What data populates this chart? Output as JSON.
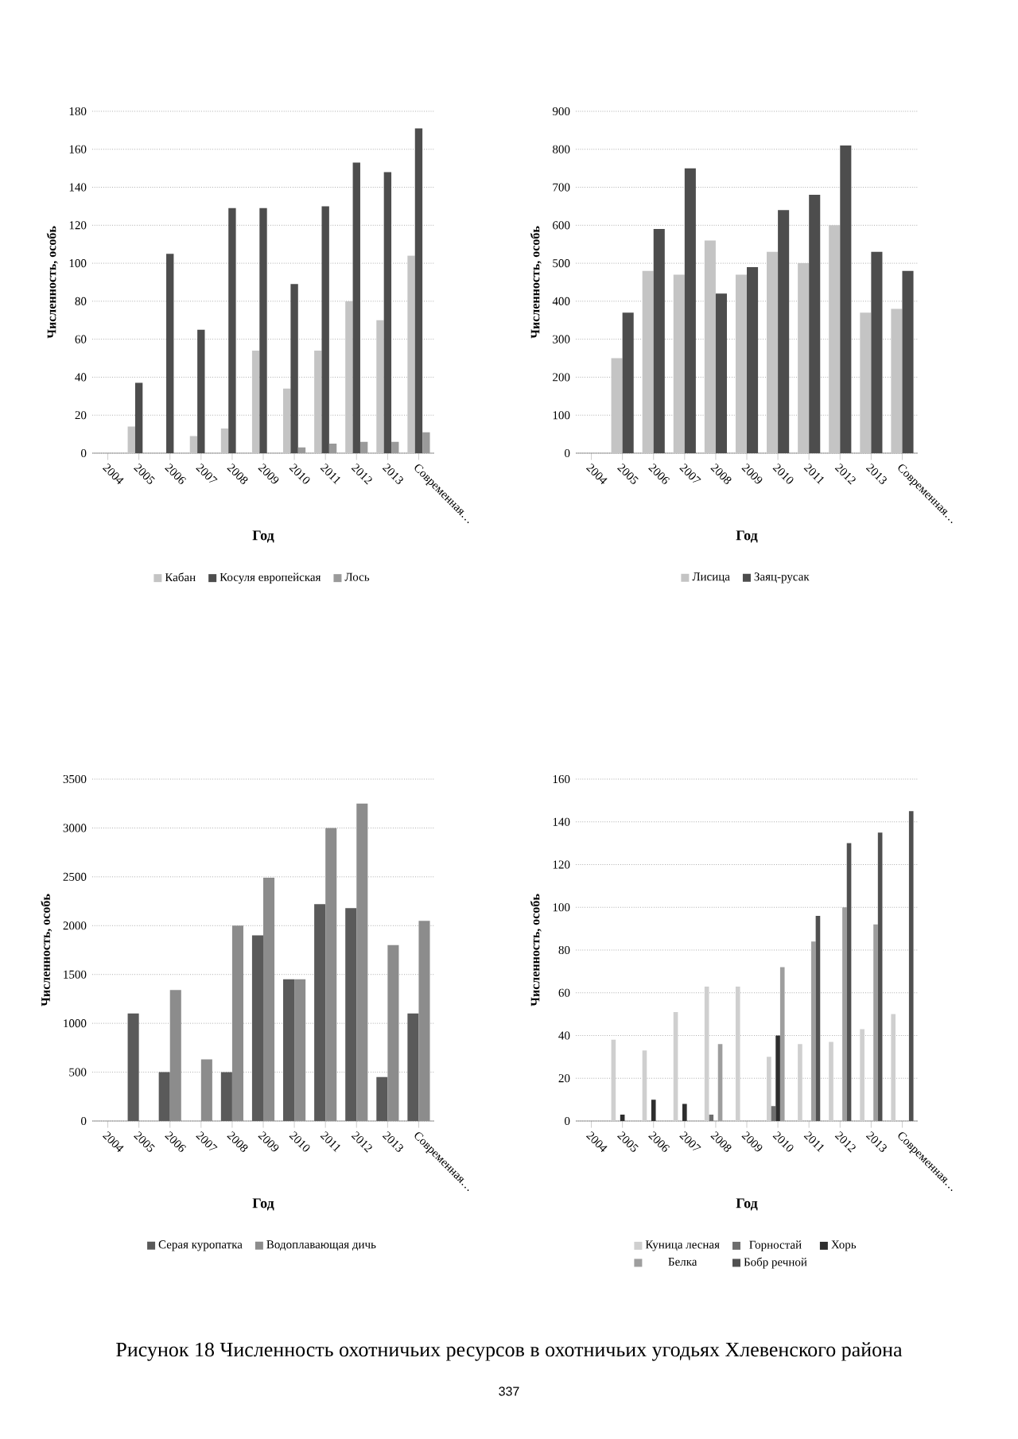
{
  "chart_data": [
    {
      "type": "bar",
      "xlabel": "Год",
      "ylabel": "Численность, особь",
      "categories": [
        "2004",
        "2005",
        "2006",
        "2007",
        "2008",
        "2009",
        "2010",
        "2011",
        "2012",
        "2013",
        "Современная…"
      ],
      "series": [
        {
          "name": "Кабан",
          "color": "#c4c4c4",
          "values": [
            null,
            14,
            null,
            9,
            13,
            54,
            34,
            54,
            80,
            70,
            104
          ]
        },
        {
          "name": "Косуля европейская",
          "color": "#4d4d4d",
          "values": [
            null,
            37,
            105,
            65,
            129,
            129,
            89,
            130,
            153,
            148,
            171
          ]
        },
        {
          "name": "Лось",
          "color": "#9a9a9a",
          "values": [
            null,
            null,
            null,
            null,
            null,
            null,
            3,
            5,
            6,
            6,
            11
          ]
        }
      ],
      "ylim": [
        0,
        180
      ],
      "yticks": [
        0,
        20,
        40,
        60,
        80,
        100,
        120,
        140,
        160,
        180
      ],
      "grid": "y",
      "legend": "bottom"
    },
    {
      "type": "bar",
      "xlabel": "Год",
      "ylabel": "Численность, особь",
      "categories": [
        "2004",
        "2005",
        "2006",
        "2007",
        "2008",
        "2009",
        "2010",
        "2011",
        "2012",
        "2013",
        "Современная…"
      ],
      "series": [
        {
          "name": "Лисица",
          "color": "#c4c4c4",
          "values": [
            null,
            250,
            480,
            470,
            560,
            470,
            530,
            500,
            600,
            370,
            380
          ]
        },
        {
          "name": "Заяц-русак",
          "color": "#4d4d4d",
          "values": [
            null,
            370,
            590,
            750,
            420,
            490,
            640,
            680,
            810,
            530,
            480
          ]
        }
      ],
      "ylim": [
        0,
        900
      ],
      "yticks": [
        0,
        100,
        200,
        300,
        400,
        500,
        600,
        700,
        800,
        900
      ],
      "grid": "y",
      "legend": "bottom"
    },
    {
      "type": "bar",
      "xlabel": "Год",
      "ylabel": "Численность, особь",
      "categories": [
        "2004",
        "2005",
        "2006",
        "2007",
        "2008",
        "2009",
        "2010",
        "2011",
        "2012",
        "2013",
        "Современная…"
      ],
      "series": [
        {
          "name": "Серая куропатка",
          "color": "#5a5a5a",
          "values": [
            null,
            1100,
            500,
            null,
            500,
            1900,
            1450,
            2220,
            2180,
            450,
            1100
          ]
        },
        {
          "name": "Водоплавающая дичь",
          "color": "#8c8c8c",
          "values": [
            null,
            null,
            1340,
            630,
            2000,
            2490,
            1450,
            3000,
            3250,
            1800,
            2050
          ]
        }
      ],
      "ylim": [
        0,
        3500
      ],
      "yticks": [
        0,
        500,
        1000,
        1500,
        2000,
        2500,
        3000,
        3500
      ],
      "grid": "y",
      "legend": "bottom"
    },
    {
      "type": "bar",
      "xlabel": "Год",
      "ylabel": "Численность, особь",
      "categories": [
        "2004",
        "2005",
        "2006",
        "2007",
        "2008",
        "2009",
        "2010",
        "2011",
        "2012",
        "2013",
        "Современная…"
      ],
      "series": [
        {
          "name": "Куница лесная",
          "color": "#cfcfcf",
          "values": [
            null,
            38,
            33,
            51,
            63,
            63,
            30,
            36,
            37,
            43,
            50
          ]
        },
        {
          "name": "Горностай",
          "color": "#6e6e6e",
          "values": [
            null,
            null,
            null,
            null,
            3,
            null,
            7,
            null,
            null,
            null,
            null
          ]
        },
        {
          "name": "Хорь",
          "color": "#2e2e2e",
          "values": [
            null,
            3,
            10,
            8,
            null,
            null,
            40,
            null,
            null,
            null,
            null
          ]
        },
        {
          "name": "Белка",
          "color": "#9e9e9e",
          "values": [
            null,
            null,
            null,
            null,
            36,
            null,
            72,
            84,
            100,
            92,
            null
          ]
        },
        {
          "name": "Бобр речной",
          "color": "#505050",
          "values": [
            null,
            null,
            null,
            null,
            null,
            null,
            null,
            96,
            130,
            135,
            145
          ]
        }
      ],
      "ylim": [
        0,
        160
      ],
      "yticks": [
        0,
        20,
        40,
        60,
        80,
        100,
        120,
        140,
        160
      ],
      "grid": "y",
      "legend": "bottom",
      "annotations": [
        "Рисунок 18 Численность охотничьих ресурсов в охотничьих угодьях Хлевенского района",
        "337"
      ]
    }
  ]
}
